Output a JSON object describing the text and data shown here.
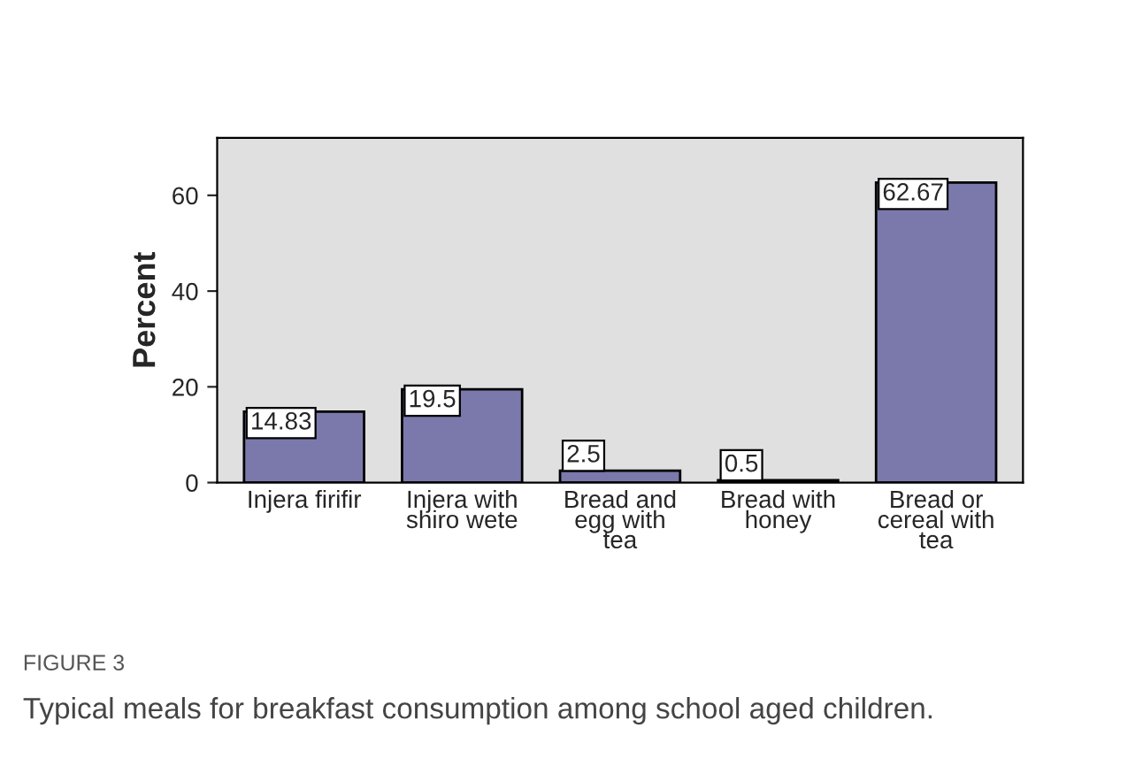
{
  "chart_data": {
    "type": "bar",
    "categories": [
      "Injera firifir",
      "Injera with\nshiro wete",
      "Bread and\negg with\ntea",
      "Bread with\nhoney",
      "Bread or\ncereal with\ntea"
    ],
    "values": [
      14.83,
      19.5,
      2.5,
      0.5,
      62.67
    ],
    "color": "#7b79ab",
    "ylabel": "Percent",
    "ylim": [
      0,
      72
    ],
    "yticks": [
      0,
      20,
      40,
      60
    ],
    "data_labels": true,
    "grid": false,
    "annotations": [
      "FIGURE 3",
      "Typical meals for breakfast consumption among school aged children."
    ]
  }
}
